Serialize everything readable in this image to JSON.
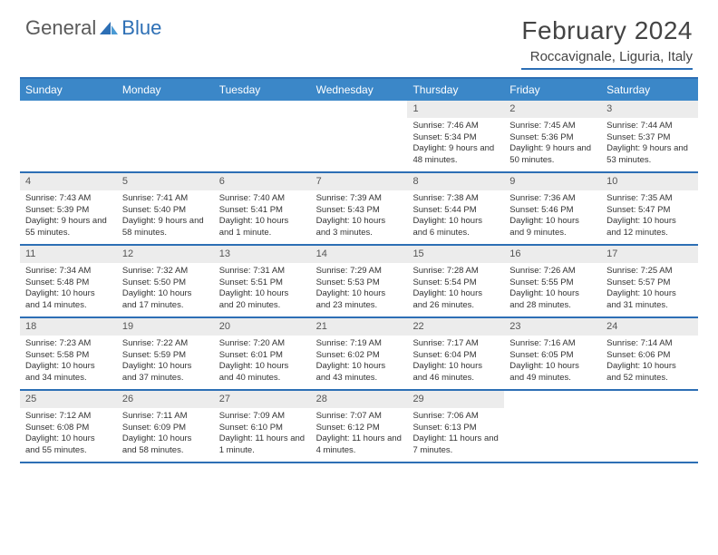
{
  "logo": {
    "general": "General",
    "blue": "Blue"
  },
  "title": "February 2024",
  "location": "Roccavignale, Liguria, Italy",
  "colors": {
    "header_bg": "#3b87c8",
    "rule": "#2d6fb5",
    "daynum_bg": "#ececec",
    "text": "#333333",
    "title_text": "#444444"
  },
  "day_headers": [
    "Sunday",
    "Monday",
    "Tuesday",
    "Wednesday",
    "Thursday",
    "Friday",
    "Saturday"
  ],
  "weeks": [
    [
      {
        "num": "",
        "sunrise": "",
        "sunset": "",
        "daylight": ""
      },
      {
        "num": "",
        "sunrise": "",
        "sunset": "",
        "daylight": ""
      },
      {
        "num": "",
        "sunrise": "",
        "sunset": "",
        "daylight": ""
      },
      {
        "num": "",
        "sunrise": "",
        "sunset": "",
        "daylight": ""
      },
      {
        "num": "1",
        "sunrise": "Sunrise: 7:46 AM",
        "sunset": "Sunset: 5:34 PM",
        "daylight": "Daylight: 9 hours and 48 minutes."
      },
      {
        "num": "2",
        "sunrise": "Sunrise: 7:45 AM",
        "sunset": "Sunset: 5:36 PM",
        "daylight": "Daylight: 9 hours and 50 minutes."
      },
      {
        "num": "3",
        "sunrise": "Sunrise: 7:44 AM",
        "sunset": "Sunset: 5:37 PM",
        "daylight": "Daylight: 9 hours and 53 minutes."
      }
    ],
    [
      {
        "num": "4",
        "sunrise": "Sunrise: 7:43 AM",
        "sunset": "Sunset: 5:39 PM",
        "daylight": "Daylight: 9 hours and 55 minutes."
      },
      {
        "num": "5",
        "sunrise": "Sunrise: 7:41 AM",
        "sunset": "Sunset: 5:40 PM",
        "daylight": "Daylight: 9 hours and 58 minutes."
      },
      {
        "num": "6",
        "sunrise": "Sunrise: 7:40 AM",
        "sunset": "Sunset: 5:41 PM",
        "daylight": "Daylight: 10 hours and 1 minute."
      },
      {
        "num": "7",
        "sunrise": "Sunrise: 7:39 AM",
        "sunset": "Sunset: 5:43 PM",
        "daylight": "Daylight: 10 hours and 3 minutes."
      },
      {
        "num": "8",
        "sunrise": "Sunrise: 7:38 AM",
        "sunset": "Sunset: 5:44 PM",
        "daylight": "Daylight: 10 hours and 6 minutes."
      },
      {
        "num": "9",
        "sunrise": "Sunrise: 7:36 AM",
        "sunset": "Sunset: 5:46 PM",
        "daylight": "Daylight: 10 hours and 9 minutes."
      },
      {
        "num": "10",
        "sunrise": "Sunrise: 7:35 AM",
        "sunset": "Sunset: 5:47 PM",
        "daylight": "Daylight: 10 hours and 12 minutes."
      }
    ],
    [
      {
        "num": "11",
        "sunrise": "Sunrise: 7:34 AM",
        "sunset": "Sunset: 5:48 PM",
        "daylight": "Daylight: 10 hours and 14 minutes."
      },
      {
        "num": "12",
        "sunrise": "Sunrise: 7:32 AM",
        "sunset": "Sunset: 5:50 PM",
        "daylight": "Daylight: 10 hours and 17 minutes."
      },
      {
        "num": "13",
        "sunrise": "Sunrise: 7:31 AM",
        "sunset": "Sunset: 5:51 PM",
        "daylight": "Daylight: 10 hours and 20 minutes."
      },
      {
        "num": "14",
        "sunrise": "Sunrise: 7:29 AM",
        "sunset": "Sunset: 5:53 PM",
        "daylight": "Daylight: 10 hours and 23 minutes."
      },
      {
        "num": "15",
        "sunrise": "Sunrise: 7:28 AM",
        "sunset": "Sunset: 5:54 PM",
        "daylight": "Daylight: 10 hours and 26 minutes."
      },
      {
        "num": "16",
        "sunrise": "Sunrise: 7:26 AM",
        "sunset": "Sunset: 5:55 PM",
        "daylight": "Daylight: 10 hours and 28 minutes."
      },
      {
        "num": "17",
        "sunrise": "Sunrise: 7:25 AM",
        "sunset": "Sunset: 5:57 PM",
        "daylight": "Daylight: 10 hours and 31 minutes."
      }
    ],
    [
      {
        "num": "18",
        "sunrise": "Sunrise: 7:23 AM",
        "sunset": "Sunset: 5:58 PM",
        "daylight": "Daylight: 10 hours and 34 minutes."
      },
      {
        "num": "19",
        "sunrise": "Sunrise: 7:22 AM",
        "sunset": "Sunset: 5:59 PM",
        "daylight": "Daylight: 10 hours and 37 minutes."
      },
      {
        "num": "20",
        "sunrise": "Sunrise: 7:20 AM",
        "sunset": "Sunset: 6:01 PM",
        "daylight": "Daylight: 10 hours and 40 minutes."
      },
      {
        "num": "21",
        "sunrise": "Sunrise: 7:19 AM",
        "sunset": "Sunset: 6:02 PM",
        "daylight": "Daylight: 10 hours and 43 minutes."
      },
      {
        "num": "22",
        "sunrise": "Sunrise: 7:17 AM",
        "sunset": "Sunset: 6:04 PM",
        "daylight": "Daylight: 10 hours and 46 minutes."
      },
      {
        "num": "23",
        "sunrise": "Sunrise: 7:16 AM",
        "sunset": "Sunset: 6:05 PM",
        "daylight": "Daylight: 10 hours and 49 minutes."
      },
      {
        "num": "24",
        "sunrise": "Sunrise: 7:14 AM",
        "sunset": "Sunset: 6:06 PM",
        "daylight": "Daylight: 10 hours and 52 minutes."
      }
    ],
    [
      {
        "num": "25",
        "sunrise": "Sunrise: 7:12 AM",
        "sunset": "Sunset: 6:08 PM",
        "daylight": "Daylight: 10 hours and 55 minutes."
      },
      {
        "num": "26",
        "sunrise": "Sunrise: 7:11 AM",
        "sunset": "Sunset: 6:09 PM",
        "daylight": "Daylight: 10 hours and 58 minutes."
      },
      {
        "num": "27",
        "sunrise": "Sunrise: 7:09 AM",
        "sunset": "Sunset: 6:10 PM",
        "daylight": "Daylight: 11 hours and 1 minute."
      },
      {
        "num": "28",
        "sunrise": "Sunrise: 7:07 AM",
        "sunset": "Sunset: 6:12 PM",
        "daylight": "Daylight: 11 hours and 4 minutes."
      },
      {
        "num": "29",
        "sunrise": "Sunrise: 7:06 AM",
        "sunset": "Sunset: 6:13 PM",
        "daylight": "Daylight: 11 hours and 7 minutes."
      },
      {
        "num": "",
        "sunrise": "",
        "sunset": "",
        "daylight": ""
      },
      {
        "num": "",
        "sunrise": "",
        "sunset": "",
        "daylight": ""
      }
    ]
  ]
}
